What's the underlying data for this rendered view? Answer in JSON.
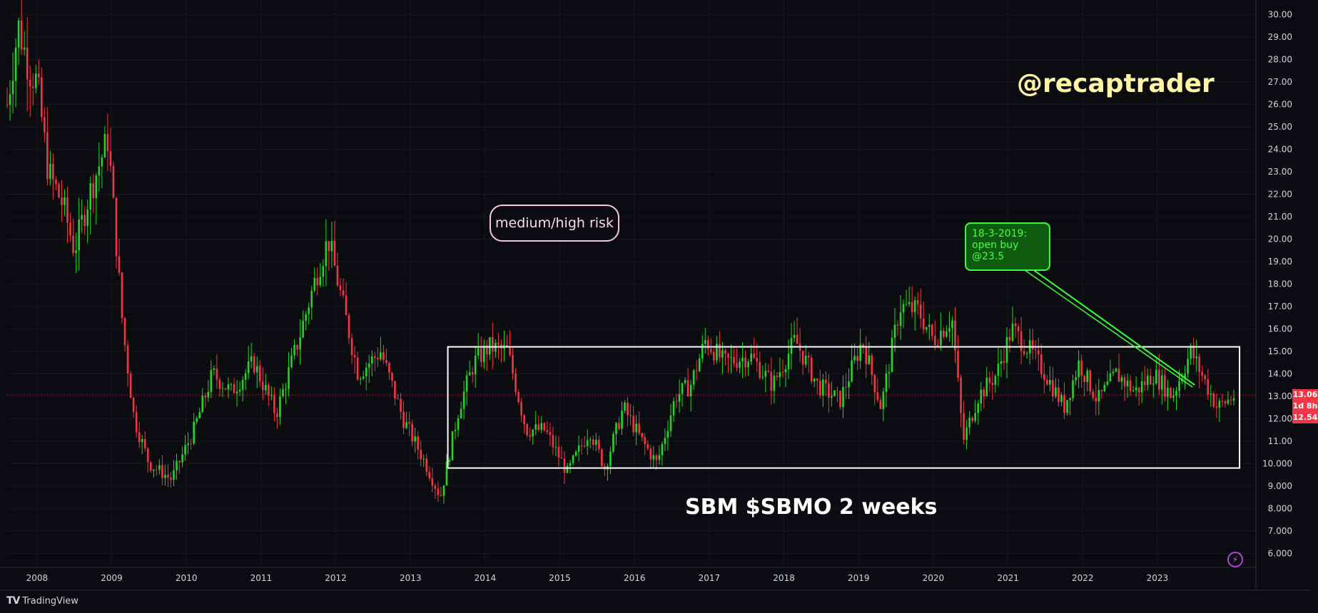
{
  "watermark": "@recaptrader",
  "risk_label": "medium/high risk",
  "buy_note": "18-3-2019:\nopen buy\n@23.5",
  "chart_title": "SBM $SBMO 2 weeks",
  "footer": {
    "logo": "TV",
    "brand": "TradingView"
  },
  "price_tags": {
    "last": "13.06",
    "countdown": "1d 8h",
    "low": "12.54"
  },
  "bolt_icon": "⚡",
  "colors": {
    "background": "#0b0c10",
    "up": "#22d622",
    "down": "#f23645",
    "box": "#ffffff",
    "annotation_green": "#39ff39"
  },
  "chart_data": {
    "type": "candlestick",
    "title": "SBM $SBMO 2 weeks",
    "x_ticks": [
      "2008",
      "2009",
      "2010",
      "2011",
      "2012",
      "2013",
      "2014",
      "2015",
      "2016",
      "2017",
      "2018",
      "2019",
      "2020",
      "2021",
      "2022",
      "2023"
    ],
    "x_range": [
      2007.6,
      2024.3
    ],
    "y_ticks": [
      "30.00",
      "29.00",
      "28.00",
      "27.00",
      "26.00",
      "25.00",
      "24.00",
      "23.00",
      "22.00",
      "21.00",
      "20.00",
      "19.00",
      "18.00",
      "17.00",
      "16.00",
      "15.00",
      "14.00",
      "13.00",
      "12.00",
      "11.00",
      "10.000",
      "9.000",
      "8.000",
      "7.000",
      "6.000"
    ],
    "y_range": [
      5.5,
      30.4
    ],
    "last_price": 13.06,
    "range_box": {
      "x_start": 2013.5,
      "x_end": 2024.1,
      "y_low": 9.8,
      "y_high": 15.2
    },
    "trendline": {
      "from": [
        2021.1,
        19.2
      ],
      "to": [
        2023.5,
        13.5
      ]
    },
    "path_points": [
      [
        2007.6,
        26.0
      ],
      [
        2007.75,
        29.5
      ],
      [
        2007.9,
        27.5
      ],
      [
        2008.0,
        27.0
      ],
      [
        2008.15,
        23.0
      ],
      [
        2008.35,
        21.5
      ],
      [
        2008.5,
        19.5
      ],
      [
        2008.7,
        22.0
      ],
      [
        2008.95,
        24.5
      ],
      [
        2009.15,
        16.0
      ],
      [
        2009.3,
        12.0
      ],
      [
        2009.5,
        10.0
      ],
      [
        2009.8,
        9.3
      ],
      [
        2010.1,
        11.5
      ],
      [
        2010.35,
        14.0
      ],
      [
        2010.6,
        13.2
      ],
      [
        2010.9,
        14.5
      ],
      [
        2011.2,
        12.2
      ],
      [
        2011.5,
        15.5
      ],
      [
        2011.75,
        18.5
      ],
      [
        2011.9,
        20.0
      ],
      [
        2012.1,
        17.0
      ],
      [
        2012.3,
        14.0
      ],
      [
        2012.6,
        15.0
      ],
      [
        2012.9,
        12.0
      ],
      [
        2013.2,
        10.0
      ],
      [
        2013.4,
        8.5
      ],
      [
        2013.65,
        12.5
      ],
      [
        2013.85,
        14.5
      ],
      [
        2014.05,
        15.2
      ],
      [
        2014.3,
        15.0
      ],
      [
        2014.55,
        11.5
      ],
      [
        2014.8,
        11.5
      ],
      [
        2015.1,
        9.6
      ],
      [
        2015.4,
        11.5
      ],
      [
        2015.6,
        9.8
      ],
      [
        2015.85,
        12.5
      ],
      [
        2016.1,
        11.0
      ],
      [
        2016.3,
        10.0
      ],
      [
        2016.55,
        13.0
      ],
      [
        2016.75,
        13.5
      ],
      [
        2016.95,
        15.5
      ],
      [
        2017.2,
        14.5
      ],
      [
        2017.55,
        14.8
      ],
      [
        2017.85,
        13.5
      ],
      [
        2018.15,
        15.5
      ],
      [
        2018.45,
        13.5
      ],
      [
        2018.75,
        12.8
      ],
      [
        2019.05,
        15.5
      ],
      [
        2019.3,
        12.5
      ],
      [
        2019.55,
        17.0
      ],
      [
        2019.8,
        16.8
      ],
      [
        2020.0,
        15.5
      ],
      [
        2020.25,
        16.5
      ],
      [
        2020.4,
        11.0
      ],
      [
        2020.6,
        13.0
      ],
      [
        2020.85,
        14.0
      ],
      [
        2021.05,
        16.0
      ],
      [
        2021.3,
        15.0
      ],
      [
        2021.5,
        14.0
      ],
      [
        2021.75,
        12.5
      ],
      [
        2021.95,
        14.5
      ],
      [
        2022.2,
        12.8
      ],
      [
        2022.45,
        14.0
      ],
      [
        2022.7,
        13.2
      ],
      [
        2022.95,
        14.0
      ],
      [
        2023.2,
        13.0
      ],
      [
        2023.45,
        15.0
      ],
      [
        2023.8,
        12.5
      ],
      [
        2024.05,
        13.06
      ]
    ]
  }
}
